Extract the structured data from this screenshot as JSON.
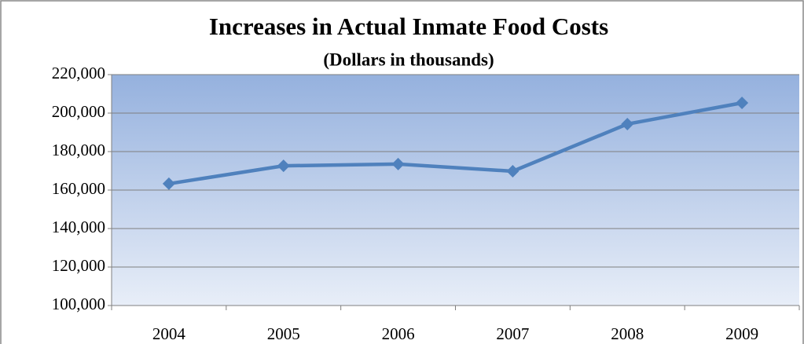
{
  "chart_data": {
    "type": "line",
    "title": "Increases in Actual Inmate Food Costs",
    "subtitle": "(Dollars in thousands)",
    "categories": [
      "2004",
      "2005",
      "2006",
      "2007",
      "2008",
      "2009"
    ],
    "series": [
      {
        "name": "Actual Inmate Food Costs",
        "color": "#4f81bd",
        "values": [
          163300,
          172600,
          173500,
          169800,
          194300,
          205300
        ]
      }
    ],
    "ylim": [
      100000,
      220000
    ],
    "yticks": [
      {
        "value": 100000,
        "label": "100,000"
      },
      {
        "value": 120000,
        "label": "120,000"
      },
      {
        "value": 140000,
        "label": "140,000"
      },
      {
        "value": 160000,
        "label": "160,000"
      },
      {
        "value": 180000,
        "label": "180,000"
      },
      {
        "value": 200000,
        "label": "200,000"
      },
      {
        "value": 220000,
        "label": "220,000"
      }
    ],
    "grid": true
  }
}
